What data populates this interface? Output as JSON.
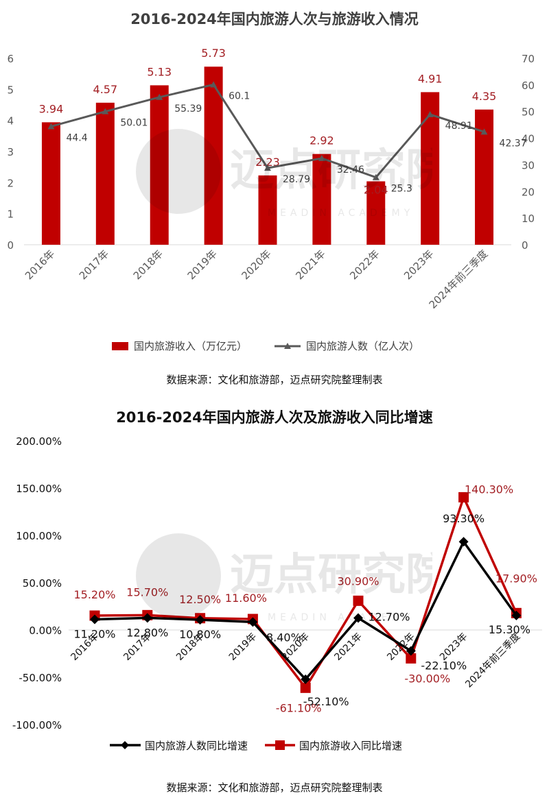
{
  "charts": [
    {
      "title": "2016-2024年国内旅游人次与旅游收入情况",
      "source": "数据来源：文化和旅游部，迈点研究院整理制表",
      "legend": [
        "国内旅游收入（万亿元）",
        "国内旅游人数（亿人次）"
      ]
    },
    {
      "title": "2016-2024年国内旅游人次及旅游收入同比增速",
      "source": "数据来源：文化和旅游部，迈点研究院整理制表",
      "legend": [
        "国内旅游人数同比增速",
        "国内旅游收入同比增速"
      ]
    }
  ],
  "watermark": {
    "text": "迈点研究院",
    "sub": "MEADIN ACADEMY"
  },
  "colors": {
    "red": "#c00000",
    "gray": "#595959",
    "black": "#000000",
    "label_red": "#a31f24"
  },
  "chart_data": [
    {
      "type": "bar",
      "title": "2016-2024年国内旅游人次与旅游收入情况",
      "categories": [
        "2016年",
        "2017年",
        "2018年",
        "2019年",
        "2020年",
        "2021年",
        "2022年",
        "2023年",
        "2024年前三季度"
      ],
      "series": [
        {
          "name": "国内旅游收入（万亿元）",
          "type": "bar",
          "axis": "left",
          "values": [
            3.94,
            4.57,
            5.13,
            5.73,
            2.23,
            2.92,
            2.04,
            4.91,
            4.35
          ]
        },
        {
          "name": "国内旅游人数（亿人次）",
          "type": "line",
          "axis": "right",
          "values": [
            44.4,
            50.01,
            55.39,
            60.1,
            28.79,
            32.46,
            25.3,
            48.91,
            42.37
          ]
        }
      ],
      "ylim_left": [
        0,
        6
      ],
      "yticks_left": [
        0,
        1,
        2,
        3,
        4,
        5,
        6
      ],
      "ylim_right": [
        0,
        70
      ],
      "yticks_right": [
        0,
        10,
        20,
        30,
        40,
        50,
        60,
        70
      ],
      "grid": false,
      "legend_position": "bottom"
    },
    {
      "type": "line",
      "title": "2016-2024年国内旅游人次及旅游收入同比增速",
      "categories": [
        "2016年",
        "2017年",
        "2018年",
        "2019年",
        "2020年",
        "2021年",
        "2022年",
        "2023年",
        "2024年前三季度"
      ],
      "series": [
        {
          "name": "国内旅游人数同比增速",
          "values": [
            11.2,
            12.8,
            10.8,
            8.4,
            -52.1,
            12.7,
            -22.1,
            93.3,
            15.3
          ],
          "labels": [
            "11.20%",
            "12.80%",
            "10.80%",
            "8.40%",
            "-52.10%",
            "12.70%",
            "-22.10%",
            "93.30%",
            "15.30%"
          ]
        },
        {
          "name": "国内旅游收入同比增速",
          "values": [
            15.2,
            15.7,
            12.5,
            11.6,
            -61.1,
            30.9,
            -30.0,
            140.3,
            17.9
          ],
          "labels": [
            "15.20%",
            "15.70%",
            "12.50%",
            "11.60%",
            "-61.10%",
            "30.90%",
            "-30.00%",
            "140.30%",
            "17.90%"
          ]
        }
      ],
      "ylim": [
        -100,
        200
      ],
      "yticks": [
        -100,
        -50,
        0,
        50,
        100,
        150,
        200
      ],
      "ytick_labels": [
        "-100.00%",
        "-50.00%",
        "0.00%",
        "50.00%",
        "100.00%",
        "150.00%",
        "200.00%"
      ],
      "grid": false,
      "legend_position": "bottom"
    }
  ]
}
